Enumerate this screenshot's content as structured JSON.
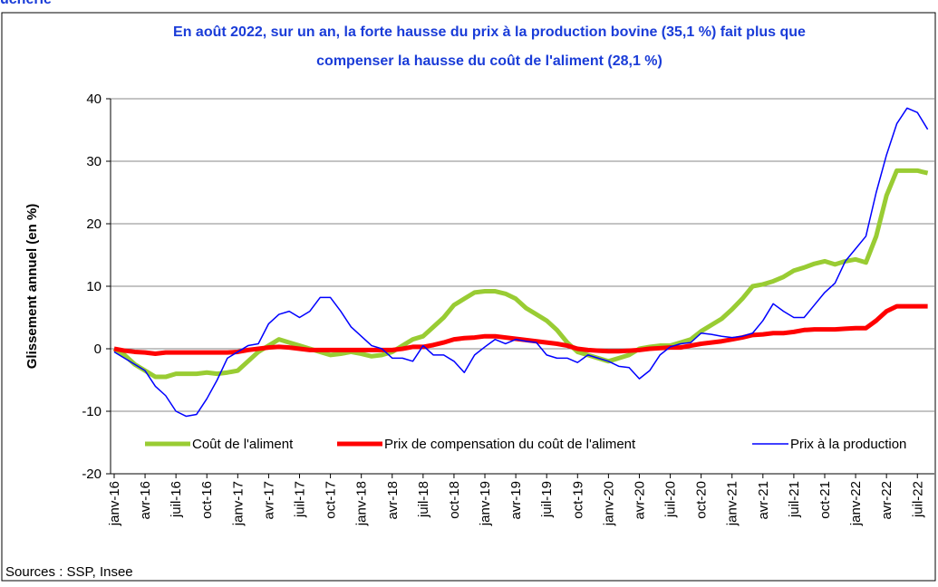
{
  "header": "ucherie",
  "chart_data": {
    "type": "line",
    "title": [
      "En août 2022, sur un an, la forte hausse du prix à la production bovine (35,1 %) fait plus que",
      "compenser la hausse  du coût de l'aliment (28,1 %)"
    ],
    "y_label": "Glissement annuel (en %)",
    "source": "Sources : SSP,  Insee",
    "categories": [
      "janv-16",
      null,
      null,
      "avr-16",
      null,
      null,
      "juil-16",
      null,
      null,
      "oct-16",
      null,
      null,
      "janv-17",
      null,
      null,
      "avr-17",
      null,
      null,
      "juil-17",
      null,
      null,
      "oct-17",
      null,
      null,
      "janv-18",
      null,
      null,
      "avr-18",
      null,
      null,
      "juil-18",
      null,
      null,
      "oct-18",
      null,
      null,
      "janv-19",
      null,
      null,
      "avr-19",
      null,
      null,
      "juil-19",
      null,
      null,
      "oct-19",
      null,
      null,
      "janv-20",
      null,
      null,
      "avr-20",
      null,
      null,
      "juil-20",
      null,
      null,
      "oct-20",
      null,
      null,
      "janv-21",
      null,
      null,
      "avr-21",
      null,
      null,
      "juil-21",
      null,
      null,
      "oct-21",
      null,
      null,
      "janv-22",
      null,
      null,
      "avr-22",
      null,
      null,
      "juil-22",
      null
    ],
    "series": [
      {
        "name": "Coût de l'aliment",
        "color": "#99cc33",
        "width": 5,
        "values": [
          0,
          -1,
          -2.5,
          -3.5,
          -4.5,
          -4.5,
          -4,
          -4,
          -4,
          -3.8,
          -4,
          -3.8,
          -3.5,
          -2,
          -0.5,
          0.5,
          1.5,
          1,
          0.5,
          0,
          -0.5,
          -1,
          -0.8,
          -0.5,
          -0.8,
          -1.2,
          -1,
          -0.5,
          0.5,
          1.5,
          2,
          3.5,
          5,
          7,
          8,
          9,
          9.2,
          9.2,
          8.8,
          8,
          6.5,
          5.5,
          4.5,
          3,
          1,
          -0.5,
          -1,
          -1.5,
          -2,
          -1.5,
          -1,
          0,
          0.3,
          0.5,
          0.5,
          1,
          1.5,
          2.8,
          3.8,
          4.8,
          6.3,
          8,
          10,
          10.3,
          10.8,
          11.5,
          12.5,
          13,
          13.6,
          14,
          13.5,
          14,
          14.3,
          13.8,
          18,
          24.5,
          28.5,
          28.5,
          28.5,
          28.1
        ]
      },
      {
        "name": "Prix de compensation du coût de l'aliment",
        "color": "#ff0000",
        "width": 5,
        "values": [
          0,
          -0.3,
          -0.5,
          -0.6,
          -0.8,
          -0.6,
          -0.6,
          -0.6,
          -0.6,
          -0.6,
          -0.6,
          -0.6,
          -0.5,
          -0.2,
          0,
          0.2,
          0.3,
          0.2,
          0,
          -0.2,
          -0.2,
          -0.2,
          -0.2,
          -0.2,
          -0.2,
          -0.2,
          -0.2,
          -0.2,
          0,
          0.3,
          0.3,
          0.6,
          1,
          1.5,
          1.7,
          1.8,
          2,
          2,
          1.8,
          1.6,
          1.4,
          1.2,
          1,
          0.8,
          0.5,
          0,
          -0.2,
          -0.3,
          -0.4,
          -0.4,
          -0.3,
          -0.2,
          0,
          0.1,
          0.2,
          0.2,
          0.5,
          0.8,
          1,
          1.2,
          1.5,
          1.8,
          2.2,
          2.3,
          2.5,
          2.5,
          2.7,
          3,
          3.1,
          3.1,
          3.1,
          3.2,
          3.3,
          3.3,
          4.5,
          6,
          6.8,
          6.8,
          6.8,
          6.8
        ]
      },
      {
        "name": "Prix à la production",
        "color": "#0000ff",
        "width": 1.5,
        "values": [
          -0.5,
          -1.5,
          -2.5,
          -3.5,
          -6,
          -7.5,
          -10,
          -10.8,
          -10.5,
          -8,
          -5,
          -1.5,
          -0.5,
          0.5,
          0.8,
          4,
          5.5,
          6,
          5,
          6,
          8.2,
          8.2,
          6,
          3.5,
          2,
          0.5,
          0,
          -1.5,
          -1.5,
          -2,
          0.5,
          -1,
          -1,
          -2,
          -3.8,
          -1,
          0.3,
          1.5,
          0.8,
          1.5,
          1.2,
          1,
          -1,
          -1.5,
          -1.5,
          -2.2,
          -1,
          -1.5,
          -2,
          -2.8,
          -3,
          -4.8,
          -3.5,
          -1,
          0.3,
          0.8,
          1,
          2.5,
          2.3,
          2,
          1.8,
          2,
          2.5,
          4.5,
          7.2,
          6,
          5,
          5,
          7,
          9,
          10.5,
          14,
          16,
          18,
          25,
          31,
          36,
          38.5,
          37.8,
          35.1
        ]
      }
    ],
    "ylim": [
      -20,
      40
    ],
    "yticks": [
      -20,
      -10,
      0,
      10,
      20,
      30,
      40
    ],
    "grid": true
  }
}
